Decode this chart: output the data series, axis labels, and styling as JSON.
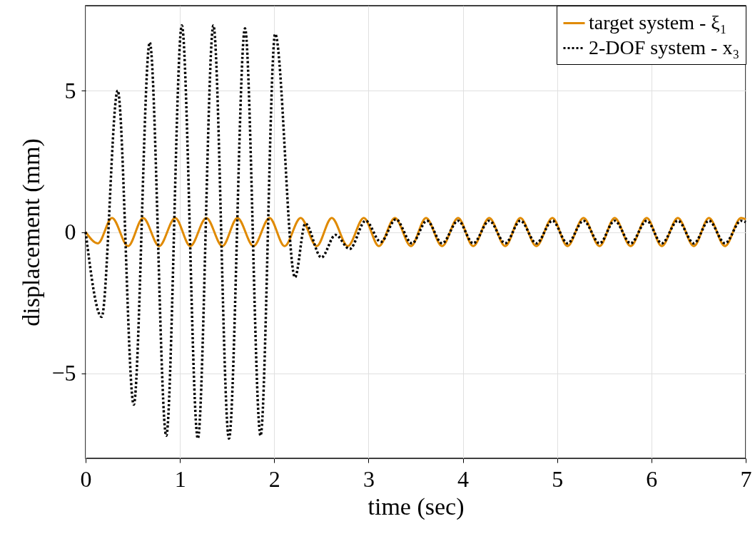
{
  "chart_data": {
    "type": "line",
    "xlabel": "time (sec)",
    "ylabel": "displacement (mm)",
    "xlim": [
      0,
      7
    ],
    "xticks": [
      0,
      1,
      2,
      3,
      4,
      5,
      6,
      7
    ],
    "ylim": [
      -8,
      8
    ],
    "yticks": [
      -5,
      0,
      5
    ],
    "grid": true,
    "legend": "top right",
    "marker": "none",
    "series": [
      {
        "name": "target system - ξ₁",
        "color": "#e08a00",
        "line_style": "solid",
        "x": [
          0,
          0.13,
          0.28,
          0.45,
          0.61,
          0.78,
          0.95,
          1.11,
          1.28,
          1.45,
          1.61,
          1.78,
          1.95,
          2.11,
          2.28,
          2.45,
          2.61,
          2.78,
          2.95,
          3.11,
          3.28,
          3.45,
          3.61,
          3.78,
          3.95,
          4.11,
          4.28,
          4.45,
          4.61,
          4.78,
          4.95,
          5.11,
          5.28,
          5.45,
          5.61,
          5.78,
          5.95,
          6.11,
          6.28,
          6.45,
          6.61,
          6.78,
          6.95,
          7
        ],
        "values": [
          0,
          -0.4,
          0.5,
          -0.5,
          0.5,
          -0.5,
          0.5,
          -0.5,
          0.5,
          -0.5,
          0.5,
          -0.5,
          0.5,
          -0.5,
          0.5,
          -0.5,
          0.5,
          -0.5,
          0.5,
          -0.5,
          0.5,
          -0.5,
          0.5,
          -0.5,
          0.5,
          -0.5,
          0.5,
          -0.5,
          0.5,
          -0.5,
          0.5,
          -0.5,
          0.5,
          -0.5,
          0.5,
          -0.5,
          0.5,
          -0.5,
          0.5,
          -0.5,
          0.5,
          -0.5,
          0.5,
          0.45
        ]
      },
      {
        "name": "2-DOF system - x₃",
        "color": "#000000",
        "line_style": "dotted",
        "x": [
          0,
          0.17,
          0.34,
          0.51,
          0.68,
          0.855,
          1.02,
          1.19,
          1.355,
          1.52,
          1.69,
          1.855,
          2.01,
          2.22,
          2.33,
          2.5,
          2.65,
          2.8,
          2.97,
          3.13,
          3.29,
          3.46,
          3.62,
          3.78,
          3.95,
          4.11,
          4.28,
          4.45,
          4.61,
          4.78,
          4.95,
          5.11,
          5.28,
          5.45,
          5.61,
          5.78,
          5.95,
          6.11,
          6.28,
          6.45,
          6.61,
          6.78,
          6.95,
          7
        ],
        "values": [
          0,
          -3.0,
          5.0,
          -6.1,
          6.7,
          -7.2,
          7.3,
          -7.3,
          7.3,
          -7.3,
          7.2,
          -7.2,
          7.0,
          -1.6,
          0.3,
          -0.9,
          -0.1,
          -0.6,
          0.4,
          -0.35,
          0.45,
          -0.4,
          0.4,
          -0.4,
          0.4,
          -0.4,
          0.4,
          -0.4,
          0.4,
          -0.4,
          0.4,
          -0.4,
          0.4,
          -0.4,
          0.4,
          -0.4,
          0.4,
          -0.4,
          0.4,
          -0.4,
          0.4,
          -0.4,
          0.4,
          0.35
        ]
      }
    ]
  }
}
